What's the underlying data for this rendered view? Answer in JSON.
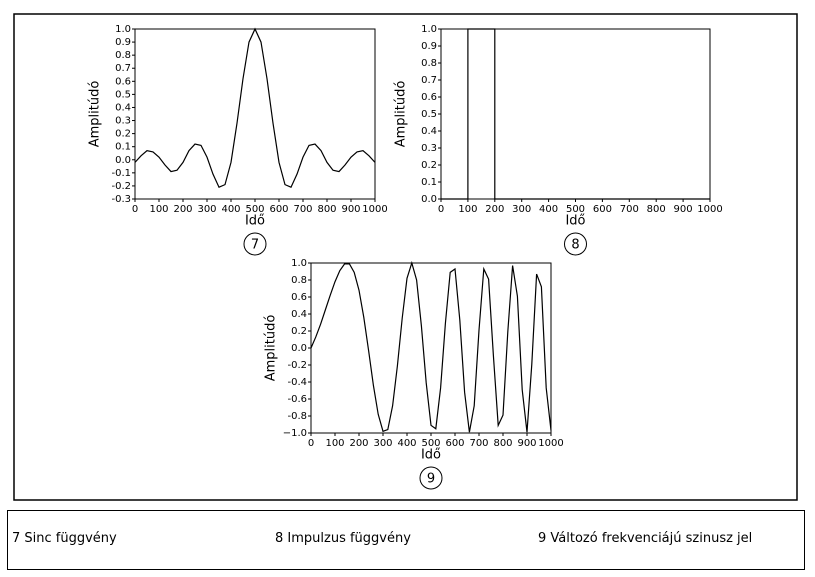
{
  "chart_data": [
    {
      "type": "line",
      "y_label": "Amplitúdó",
      "x_label": "Idő",
      "badge": "7",
      "color": "#000000",
      "x": [
        0,
        25,
        50,
        75,
        100,
        125,
        150,
        175,
        200,
        225,
        250,
        275,
        300,
        325,
        350,
        375,
        400,
        425,
        450,
        475,
        500,
        525,
        550,
        575,
        600,
        625,
        650,
        675,
        700,
        725,
        750,
        775,
        800,
        825,
        850,
        875,
        900,
        925,
        950,
        975,
        1000
      ],
      "values": [
        -0.02,
        0.03,
        0.07,
        0.06,
        0.02,
        -0.04,
        -0.09,
        -0.08,
        -0.02,
        0.07,
        0.12,
        0.11,
        0.02,
        -0.11,
        -0.21,
        -0.19,
        -0.02,
        0.28,
        0.62,
        0.9,
        1.0,
        0.9,
        0.62,
        0.28,
        -0.02,
        -0.19,
        -0.21,
        -0.11,
        0.02,
        0.11,
        0.12,
        0.07,
        -0.02,
        -0.08,
        -0.09,
        -0.04,
        0.02,
        0.06,
        0.07,
        0.03,
        -0.02
      ],
      "xlim": [
        0,
        1000
      ],
      "xticks": [
        0,
        100,
        200,
        300,
        400,
        500,
        600,
        700,
        800,
        900,
        1000
      ],
      "ylim": [
        -0.3,
        1.0
      ],
      "yticks": [
        -0.3,
        -0.2,
        -0.1,
        {
          "value": 0,
          "label": "0.0"
        },
        0.1,
        0.2,
        0.3,
        0.4,
        0.5,
        0.6,
        0.7,
        0.8,
        0.9,
        {
          "value": 1,
          "label": "1.0"
        }
      ]
    },
    {
      "type": "line",
      "y_label": "Amplitúdó",
      "x_label": "Idő",
      "badge": "8",
      "color": "#000000",
      "x": [
        0,
        100,
        100,
        200,
        200,
        1000
      ],
      "values": [
        0,
        0,
        1,
        1,
        0,
        0
      ],
      "xlim": [
        0,
        1000
      ],
      "xticks": [
        0,
        100,
        200,
        300,
        400,
        500,
        600,
        700,
        800,
        900,
        1000
      ],
      "ylim": [
        0,
        1
      ],
      "yticks": [
        {
          "value": 0,
          "label": "0.0"
        },
        0.1,
        0.2,
        0.3,
        0.4,
        0.5,
        0.6,
        0.7,
        0.8,
        0.9,
        {
          "value": 1,
          "label": "1.0"
        }
      ]
    },
    {
      "type": "line",
      "y_label": "Amplitúdó",
      "x_label": "Idő",
      "badge": "9",
      "color": "#000000",
      "x": [
        0,
        20,
        40,
        60,
        80,
        100,
        120,
        140,
        160,
        180,
        200,
        220,
        240,
        260,
        280,
        300,
        320,
        340,
        360,
        380,
        400,
        420,
        440,
        460,
        480,
        500,
        520,
        540,
        560,
        580,
        600,
        620,
        640,
        660,
        680,
        700,
        720,
        740,
        760,
        780,
        800,
        820,
        840,
        860,
        880,
        900,
        920,
        940,
        960,
        980,
        1000
      ],
      "values": [
        0,
        0.13,
        0.28,
        0.45,
        0.62,
        0.78,
        0.91,
        0.99,
        0.99,
        0.89,
        0.68,
        0.36,
        -0.03,
        -0.44,
        -0.78,
        -0.98,
        -0.96,
        -0.68,
        -0.21,
        0.35,
        0.82,
        1.0,
        0.8,
        0.26,
        -0.41,
        -0.91,
        -0.95,
        -0.47,
        0.29,
        0.89,
        0.93,
        0.33,
        -0.52,
        -0.99,
        -0.68,
        0.21,
        0.93,
        0.81,
        -0.09,
        -0.91,
        -0.79,
        0.19,
        0.97,
        0.61,
        -0.49,
        -0.99,
        -0.19,
        0.87,
        0.72,
        -0.47,
        -0.97
      ],
      "xlim": [
        0,
        1000
      ],
      "xticks": [
        0,
        100,
        200,
        300,
        400,
        500,
        600,
        700,
        800,
        900,
        1000
      ],
      "ylim": [
        -1,
        1
      ],
      "yticks": [
        {
          "value": -1,
          "label": "−1.0"
        },
        -0.8,
        -0.6,
        -0.4,
        -0.2,
        {
          "value": 0,
          "label": "0.0"
        },
        0.2,
        0.4,
        0.6,
        0.8,
        {
          "value": 1,
          "label": "1.0"
        }
      ]
    }
  ],
  "legend_items": [
    "7 Sinc függvény",
    "8 Impulzus függvény",
    "9 Változó frekvenciájú szinusz jel"
  ]
}
